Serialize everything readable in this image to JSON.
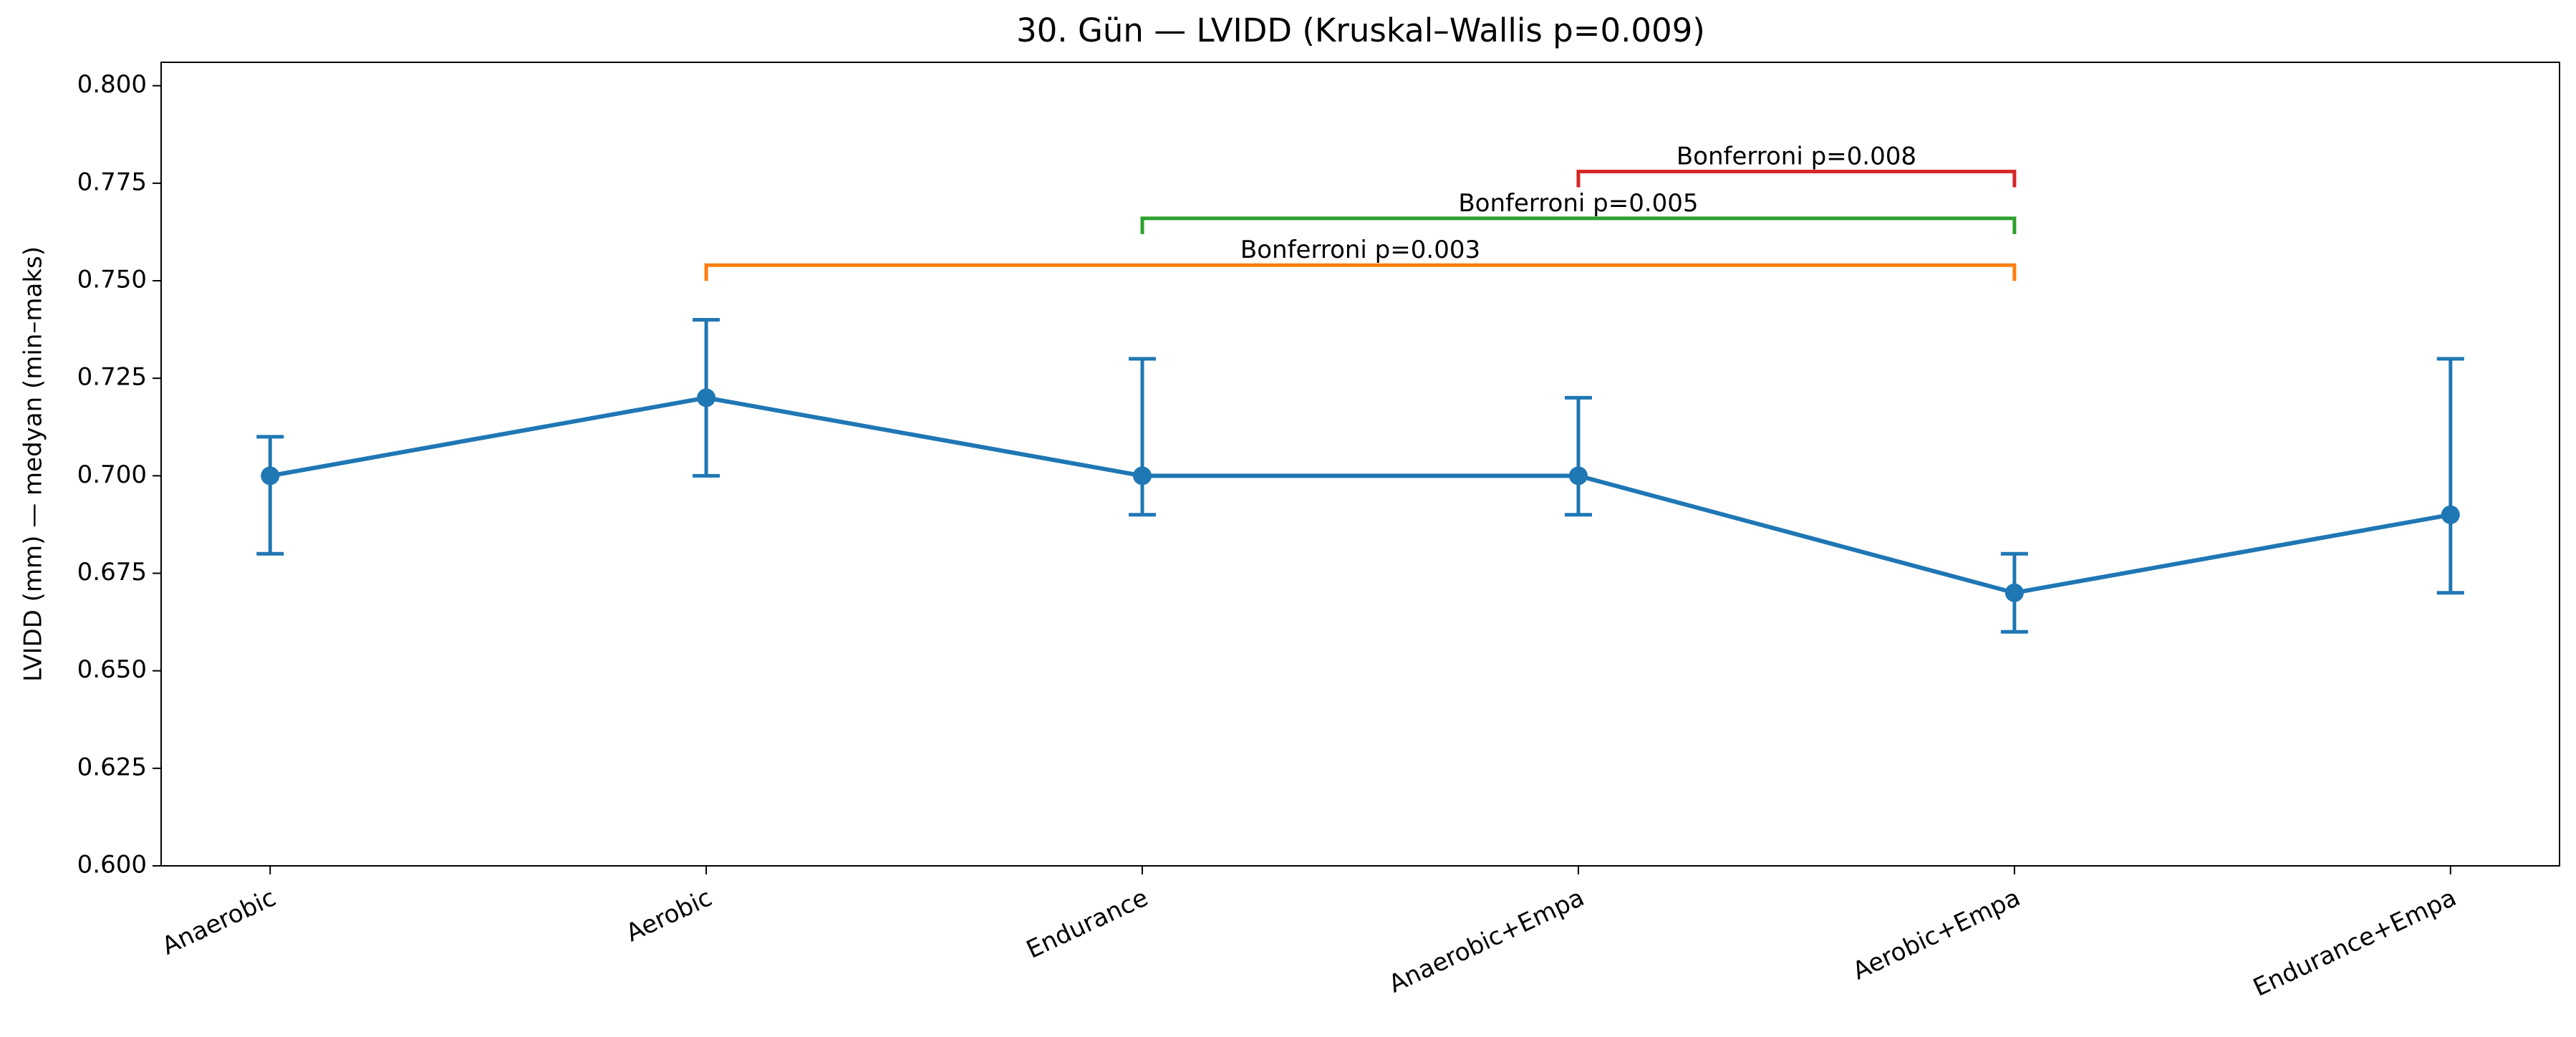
{
  "chart_data": {
    "type": "line",
    "title": "30. Gün — LVIDD (Kruskal–Wallis p=0.009)",
    "y_label": "LVIDD (mm) — medyan (min–maks)",
    "categories": [
      "Anaerobic",
      "Aerobic",
      "Endurance",
      "Anaerobic+Empa",
      "Aerobic+Empa",
      "Endurance+Empa"
    ],
    "series": [
      {
        "color": "#1f77b4",
        "values": [
          0.7,
          0.72,
          0.7,
          0.7,
          0.67,
          0.69
        ],
        "min": [
          0.68,
          0.7,
          0.69,
          0.69,
          0.66,
          0.67
        ],
        "max": [
          0.71,
          0.74,
          0.73,
          0.72,
          0.68,
          0.73
        ]
      }
    ],
    "ylim": [
      0.6,
      0.806
    ],
    "yticks": [
      {
        "value": 0.6,
        "label": "0.600"
      },
      0.625,
      {
        "value": 0.65,
        "label": "0.650"
      },
      0.675,
      {
        "value": 0.7,
        "label": "0.700"
      },
      0.725,
      {
        "value": 0.75,
        "label": "0.750"
      },
      0.775,
      {
        "value": 0.8,
        "label": "0.800"
      }
    ],
    "annotations": [
      {
        "from": "Aerobic",
        "to": "Aerobic+Empa",
        "y": 0.754,
        "label": "Bonferroni p=0.003",
        "color": "#ff7f0e"
      },
      {
        "from": "Endurance",
        "to": "Aerobic+Empa",
        "y": 0.766,
        "label": "Bonferroni p=0.005",
        "color": "#2ca02c"
      },
      {
        "from": "Anaerobic+Empa",
        "to": "Aerobic+Empa",
        "y": 0.778,
        "label": "Bonferroni p=0.008",
        "color": "#d62728"
      }
    ]
  }
}
